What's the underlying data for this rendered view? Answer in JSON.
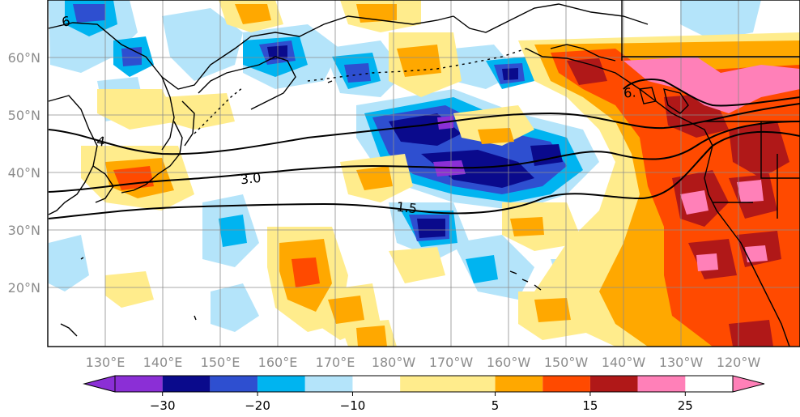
{
  "lat_labels": [
    "60°N",
    "50°N",
    "40°N",
    "30°N",
    "20°N"
  ],
  "lon_labels": [
    "130°E",
    "140°E",
    "150°E",
    "160°E",
    "170°E",
    "180°W",
    "170°W",
    "160°W",
    "150°W",
    "140°W",
    "130°W",
    "120°W"
  ],
  "contours": [
    {
      "label": "3.0"
    },
    {
      "label": "1.5"
    },
    {
      "label": "4"
    },
    {
      "label": "6."
    },
    {
      "label": "6"
    }
  ],
  "colorbar": {
    "ticks": [
      "−30",
      "−20",
      "−10",
      "5",
      "15",
      "25"
    ],
    "colors": [
      "#8b2fd6",
      "#0a0a8c",
      "#2e4fd0",
      "#00b4f0",
      "#b4e4fa",
      "#ffffff",
      "#ffec8c",
      "#ffa800",
      "#ff4a00",
      "#b01818",
      "#ff80b8"
    ],
    "tick_values": [
      -30,
      -20,
      -10,
      5,
      15,
      25
    ],
    "levels": [
      -35,
      -30,
      -25,
      -20,
      -15,
      -10,
      -5,
      5,
      10,
      15,
      20,
      25,
      30
    ]
  },
  "map_colors": {
    "grid": "#8c8c8c",
    "coast": "#000000",
    "label": "#8c8c8c"
  }
}
